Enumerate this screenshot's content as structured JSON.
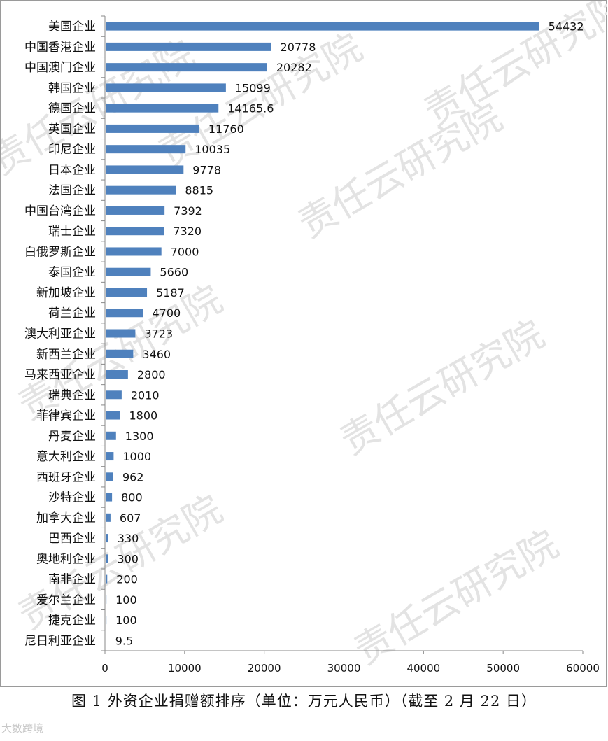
{
  "chart_data": {
    "type": "bar",
    "orientation": "horizontal",
    "categories": [
      "美国企业",
      "中国香港企业",
      "中国澳门企业",
      "韩国企业",
      "德国企业",
      "英国企业",
      "印尼企业",
      "日本企业",
      "法国企业",
      "中国台湾企业",
      "瑞士企业",
      "白俄罗斯企业",
      "泰国企业",
      "新加坡企业",
      "荷兰企业",
      "澳大利亚企业",
      "新西兰企业",
      "马来西亚企业",
      "瑞典企业",
      "菲律宾企业",
      "丹麦企业",
      "意大利企业",
      "西班牙企业",
      "沙特企业",
      "加拿大企业",
      "巴西企业",
      "奥地利企业",
      "南非企业",
      "爱尔兰企业",
      "捷克企业",
      "尼日利亚企业"
    ],
    "values": [
      54432,
      20778,
      20282,
      15099,
      14165.6,
      11760,
      10035,
      9778,
      8815,
      7392,
      7320,
      7000,
      5660,
      5187,
      4700,
      3723,
      3460,
      2800,
      2010,
      1800,
      1300,
      1000,
      962,
      800,
      607,
      330,
      300,
      200,
      100,
      100,
      9.5
    ],
    "value_labels": [
      "54432",
      "20778",
      "20282",
      "15099",
      "14165.6",
      "11760",
      "10035",
      "9778",
      "8815",
      "7392",
      "7320",
      "7000",
      "5660",
      "5187",
      "4700",
      "3723",
      "3460",
      "2800",
      "2010",
      "1800",
      "1300",
      "1000",
      "962",
      "800",
      "607",
      "330",
      "300",
      "200",
      "100",
      "100",
      "9.5"
    ],
    "xlim": [
      0,
      60000
    ],
    "xticks": [
      "0",
      "10000",
      "20000",
      "30000",
      "40000",
      "50000",
      "60000"
    ],
    "grid": false,
    "bar_color": "#4f81bd"
  },
  "watermark": "责任云研究院",
  "caption": "图 1  外资企业捐赠额排序（单位：万元人民币）（截至 2 月 22 日）",
  "footer_logo": "大数跨境"
}
